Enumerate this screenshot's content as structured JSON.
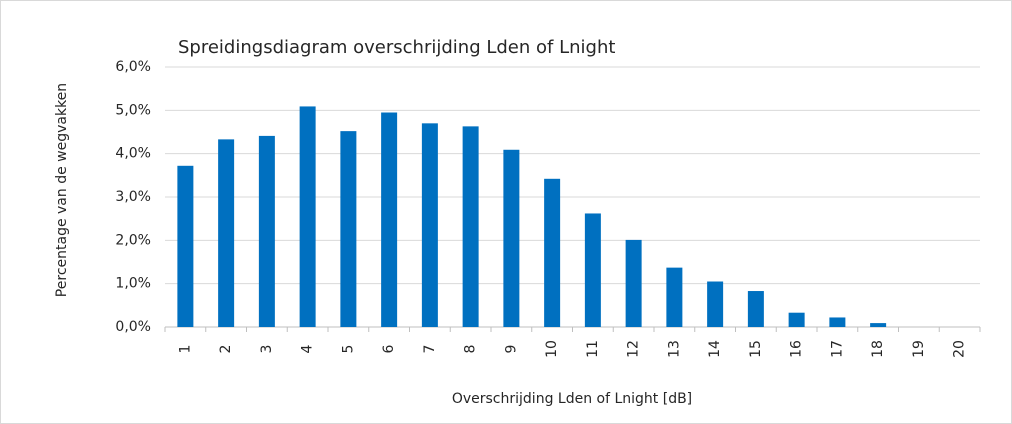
{
  "chart_data": {
    "type": "bar",
    "title": "Spreidingsdiagram overschrijding Lden of Lnight",
    "xlabel": "Overschrijding Lden of Lnight [dB]",
    "ylabel": "Percentage van de wegvakken",
    "categories": [
      "1",
      "2",
      "3",
      "4",
      "5",
      "6",
      "7",
      "8",
      "9",
      "10",
      "11",
      "12",
      "13",
      "14",
      "15",
      "16",
      "17",
      "18",
      "19",
      "20"
    ],
    "values": [
      3.72,
      4.33,
      4.41,
      5.09,
      4.52,
      4.95,
      4.7,
      4.63,
      4.09,
      3.42,
      2.62,
      2.01,
      1.37,
      1.05,
      0.83,
      0.33,
      0.22,
      0.09,
      0,
      0
    ],
    "color": "#0070c0",
    "ylim": [
      0,
      6
    ],
    "yticks": [
      {
        "value": 0,
        "label": "0,0%"
      },
      {
        "value": 1,
        "label": "1,0%"
      },
      {
        "value": 2,
        "label": "2,0%"
      },
      {
        "value": 3,
        "label": "3,0%"
      },
      {
        "value": 4,
        "label": "4,0%"
      },
      {
        "value": 5,
        "label": "5,0%"
      },
      {
        "value": 6,
        "label": "6,0%"
      }
    ],
    "grid": true
  }
}
